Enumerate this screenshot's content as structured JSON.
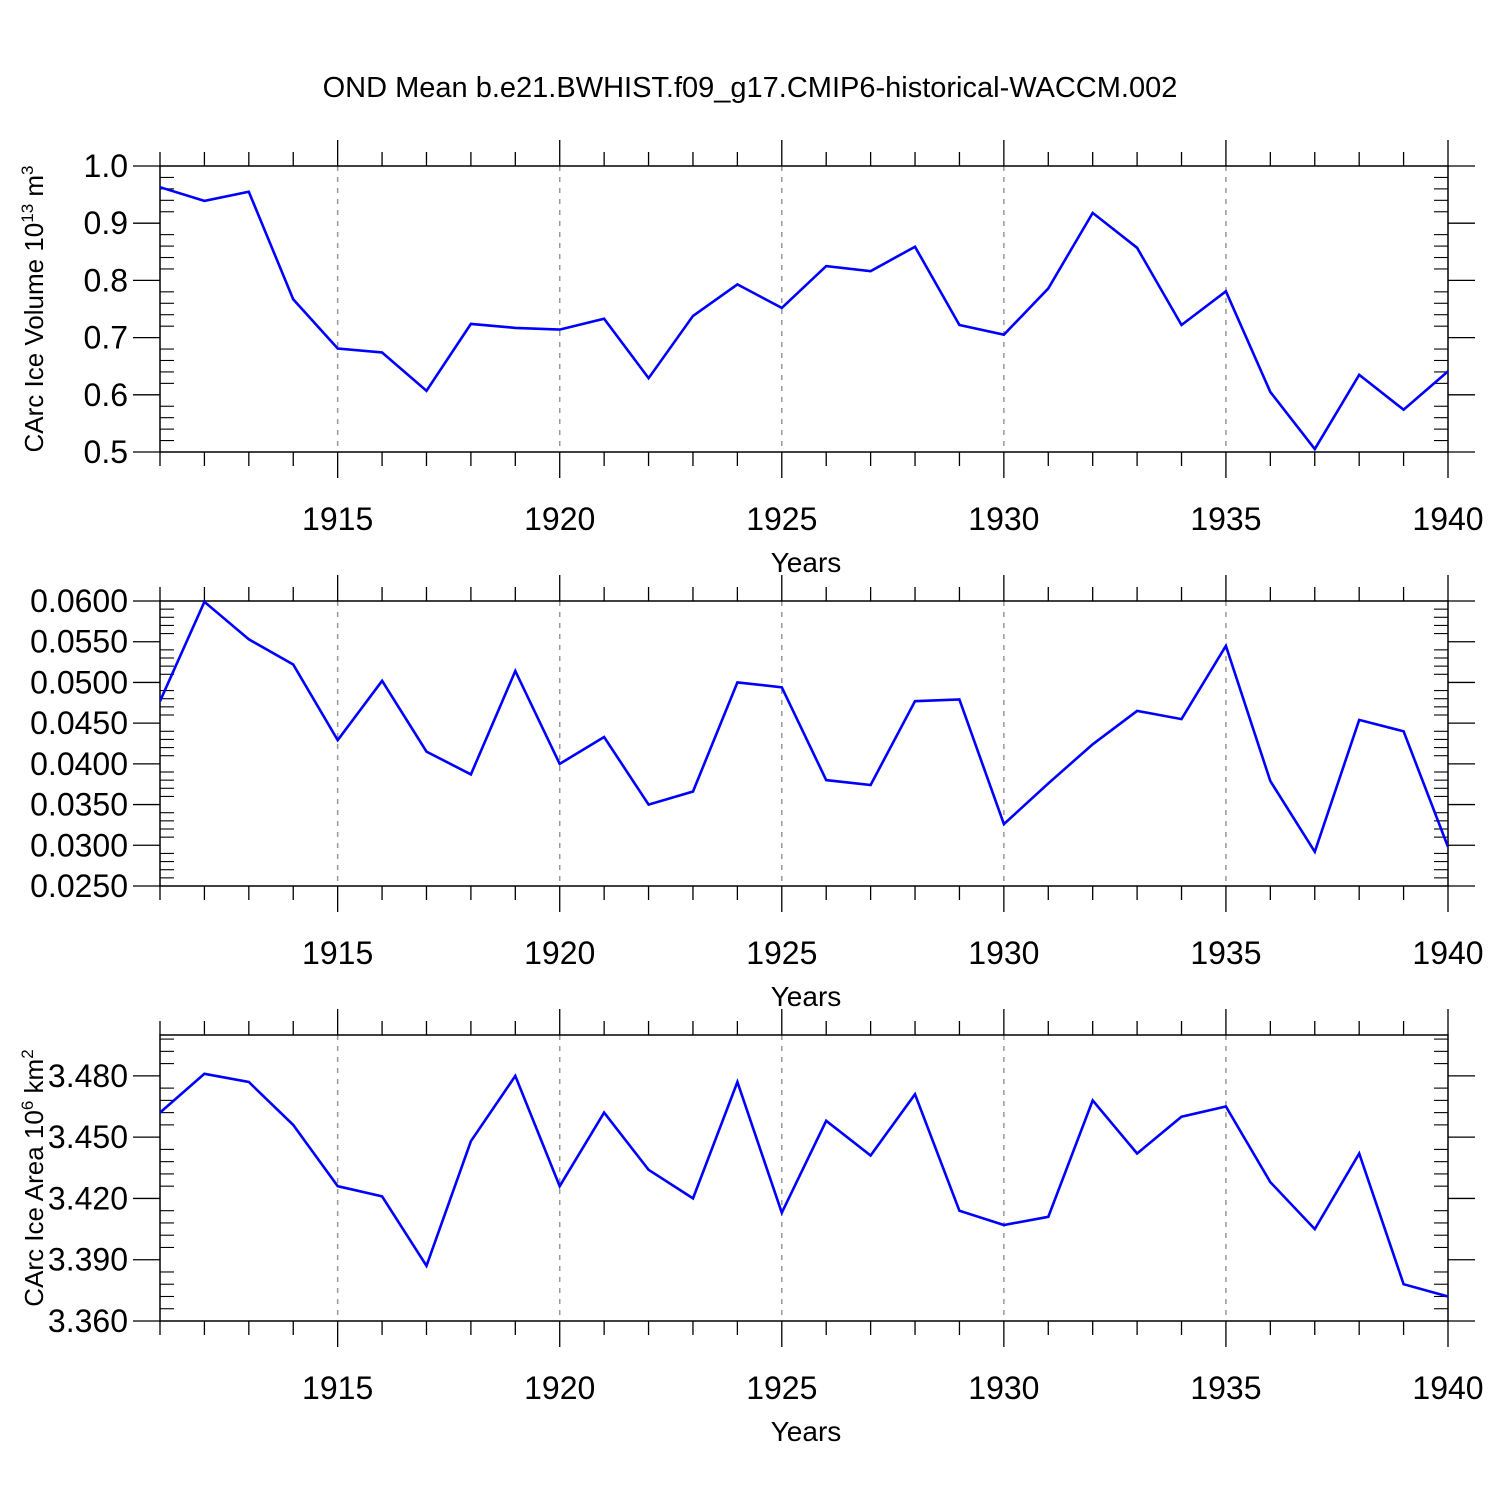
{
  "title": "OND Mean b.e21.BWHIST.f09_g17.CMIP6-historical-WACCM.002",
  "colors": {
    "line": "#0000ff",
    "axis": "#000000",
    "grid": "#999999"
  },
  "chart_data": [
    {
      "type": "line",
      "ylabel": "CArc Ice Volume 10",
      "ylabel_exp": "13",
      "ylabel_unit": " m",
      "ylabel_unit_exp": "3",
      "xlabel": "Years",
      "xlim": [
        1911,
        1940
      ],
      "ylim": [
        0.5,
        1.0
      ],
      "yticks": [
        0.5,
        0.6,
        0.7,
        0.8,
        0.9,
        1.0
      ],
      "ytick_labels": [
        "0.5",
        "0.6",
        "0.7",
        "0.8",
        "0.9",
        "1.0"
      ],
      "xticks": [
        1915,
        1920,
        1925,
        1930,
        1935,
        1940
      ],
      "xtick_labels": [
        "1915",
        "1920",
        "1925",
        "1930",
        "1935",
        "1940"
      ],
      "x": [
        1911,
        1912,
        1913,
        1914,
        1915,
        1916,
        1917,
        1918,
        1919,
        1920,
        1921,
        1922,
        1923,
        1924,
        1925,
        1926,
        1927,
        1928,
        1929,
        1930,
        1931,
        1932,
        1933,
        1934,
        1935,
        1936,
        1937,
        1938,
        1939,
        1940
      ],
      "values": [
        0.963,
        0.939,
        0.955,
        0.767,
        0.681,
        0.674,
        0.607,
        0.724,
        0.717,
        0.714,
        0.733,
        0.629,
        0.738,
        0.793,
        0.752,
        0.825,
        0.816,
        0.859,
        0.722,
        0.705,
        0.786,
        0.918,
        0.857,
        0.722,
        0.781,
        0.605,
        0.505,
        0.635,
        0.574,
        0.641
      ]
    },
    {
      "type": "line",
      "ylabel": "",
      "xlabel": "Years",
      "xlim": [
        1911,
        1940
      ],
      "ylim": [
        0.025,
        0.06
      ],
      "yticks": [
        0.025,
        0.03,
        0.035,
        0.04,
        0.045,
        0.05,
        0.055,
        0.06
      ],
      "ytick_labels": [
        "0.0250",
        "0.0300",
        "0.0350",
        "0.0400",
        "0.0450",
        "0.0500",
        "0.0550",
        "0.0600"
      ],
      "xticks": [
        1915,
        1920,
        1925,
        1930,
        1935,
        1940
      ],
      "xtick_labels": [
        "1915",
        "1920",
        "1925",
        "1930",
        "1935",
        "1940"
      ],
      "x": [
        1911,
        1912,
        1913,
        1914,
        1915,
        1916,
        1917,
        1918,
        1919,
        1920,
        1921,
        1922,
        1923,
        1924,
        1925,
        1926,
        1927,
        1928,
        1929,
        1930,
        1931,
        1932,
        1933,
        1934,
        1935,
        1936,
        1937,
        1938,
        1939,
        1940
      ],
      "values": [
        0.0477,
        0.0599,
        0.0553,
        0.0522,
        0.0429,
        0.0502,
        0.0415,
        0.0387,
        0.0514,
        0.04,
        0.0433,
        0.035,
        0.0366,
        0.05,
        0.0494,
        0.038,
        0.0374,
        0.0477,
        0.0479,
        0.0326,
        0.0376,
        0.0424,
        0.0465,
        0.0455,
        0.0545,
        0.0379,
        0.0292,
        0.0454,
        0.044,
        0.0298
      ]
    },
    {
      "type": "line",
      "ylabel": "CArc Ice Area 10",
      "ylabel_exp": "6",
      "ylabel_unit": " km",
      "ylabel_unit_exp": "2",
      "xlabel": "Years",
      "xlim": [
        1911,
        1940
      ],
      "ylim": [
        3.36,
        3.5
      ],
      "yticks": [
        3.36,
        3.39,
        3.42,
        3.45,
        3.48
      ],
      "ytick_labels": [
        "3.360",
        "3.390",
        "3.420",
        "3.450",
        "3.480"
      ],
      "xticks": [
        1915,
        1920,
        1925,
        1930,
        1935,
        1940
      ],
      "xtick_labels": [
        "1915",
        "1920",
        "1925",
        "1930",
        "1935",
        "1940"
      ],
      "x": [
        1911,
        1912,
        1913,
        1914,
        1915,
        1916,
        1917,
        1918,
        1919,
        1920,
        1921,
        1922,
        1923,
        1924,
        1925,
        1926,
        1927,
        1928,
        1929,
        1930,
        1931,
        1932,
        1933,
        1934,
        1935,
        1936,
        1937,
        1938,
        1939,
        1940
      ],
      "values": [
        3.462,
        3.481,
        3.477,
        3.456,
        3.426,
        3.421,
        3.387,
        3.448,
        3.48,
        3.426,
        3.462,
        3.434,
        3.42,
        3.477,
        3.413,
        3.458,
        3.441,
        3.471,
        3.414,
        3.407,
        3.411,
        3.468,
        3.442,
        3.46,
        3.465,
        3.428,
        3.405,
        3.442,
        3.378,
        3.372
      ]
    }
  ]
}
